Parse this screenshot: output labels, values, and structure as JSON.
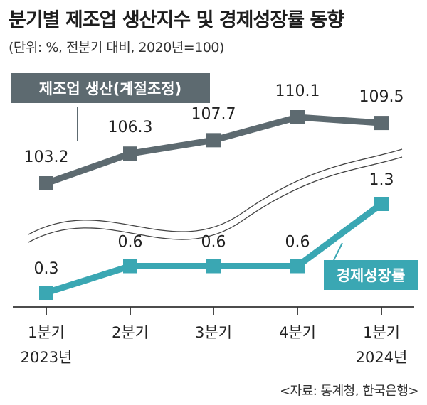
{
  "header": {
    "title": "분기별 제조업 생산지수 및 경제성장률 동향",
    "subtitle": "(단위: %, 전분기 대비, 2020년=100)"
  },
  "footer": {
    "source": "<자료: 통계청, 한국은행>"
  },
  "colors": {
    "manufacturing": "#5d6a70",
    "growth": "#3aa7b3",
    "axis": "#333333"
  },
  "chart_data": {
    "type": "line",
    "categories": [
      "1분기",
      "2분기",
      "3분기",
      "4분기",
      "1분기"
    ],
    "category_years": [
      "2023년",
      "",
      "",
      "",
      "2024년"
    ],
    "series": [
      {
        "name": "제조업 생산(계절조정)",
        "values": [
          103.2,
          106.3,
          107.7,
          110.1,
          109.5
        ],
        "labels": [
          "103.2",
          "106.3",
          "107.7",
          "110.1",
          "109.5"
        ]
      },
      {
        "name": "경제성장률",
        "values": [
          0.3,
          0.6,
          0.6,
          0.6,
          1.3
        ],
        "labels": [
          "0.3",
          "0.6",
          "0.6",
          "0.6",
          "1.3"
        ]
      }
    ],
    "axis_break": true,
    "grid": false
  }
}
